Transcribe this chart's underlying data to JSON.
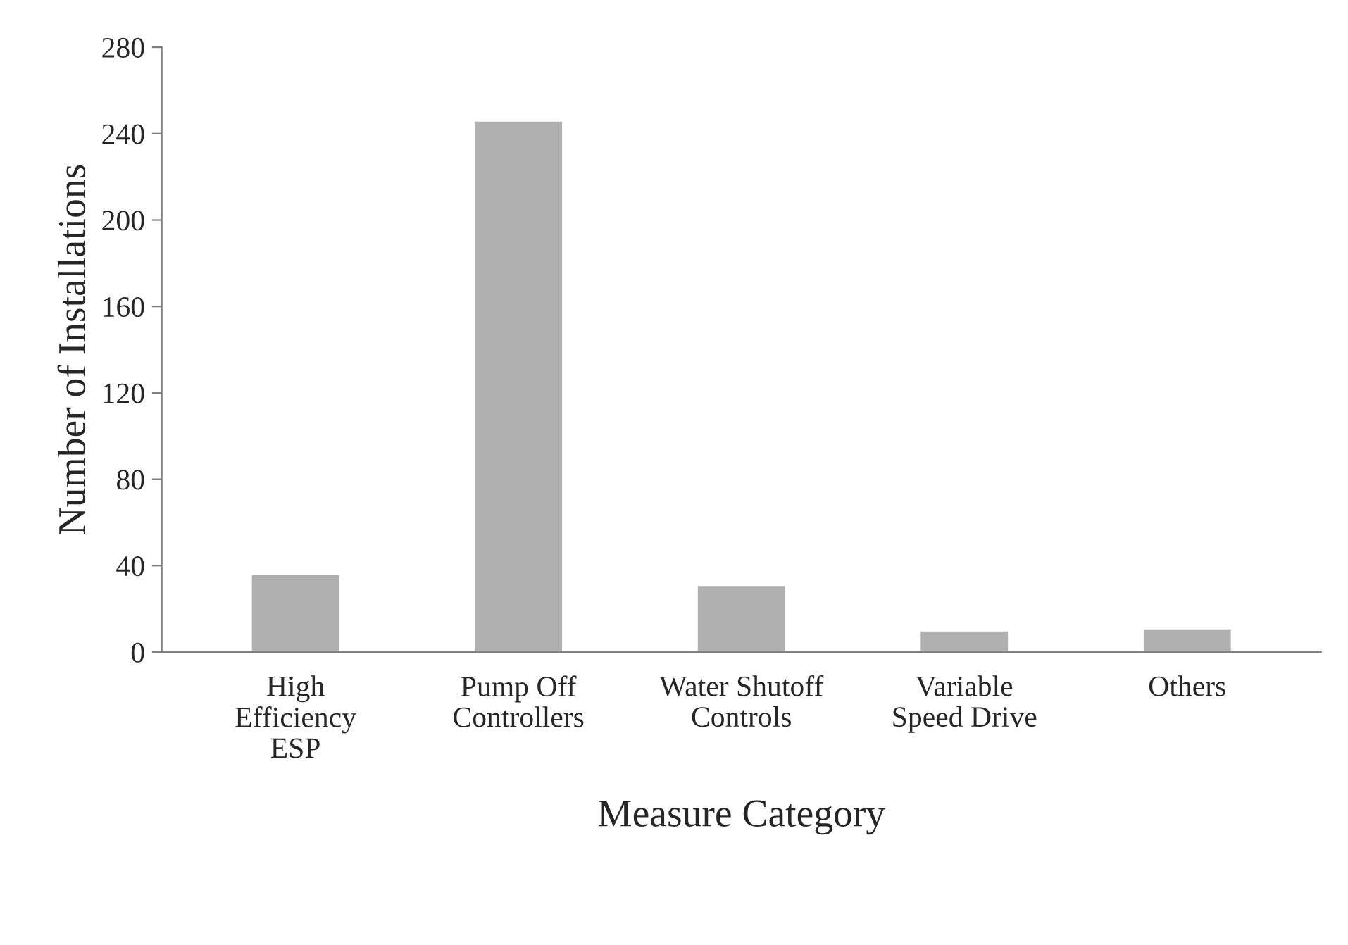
{
  "chart_data": {
    "type": "bar",
    "xlabel": "Measure Category",
    "ylabel": "Number of Installations",
    "categories": [
      "High\nEfficiency\nESP",
      "Pump Off\nControllers",
      "Water Shutoff\nControls",
      "Variable\nSpeed Drive",
      "Others"
    ],
    "values": [
      36,
      246,
      31,
      10,
      11
    ],
    "color": "#b0b0b0",
    "ylim": [
      0,
      280
    ],
    "yticks": [
      0,
      40,
      80,
      120,
      160,
      200,
      240,
      280
    ],
    "grid": false,
    "legend": false
  }
}
